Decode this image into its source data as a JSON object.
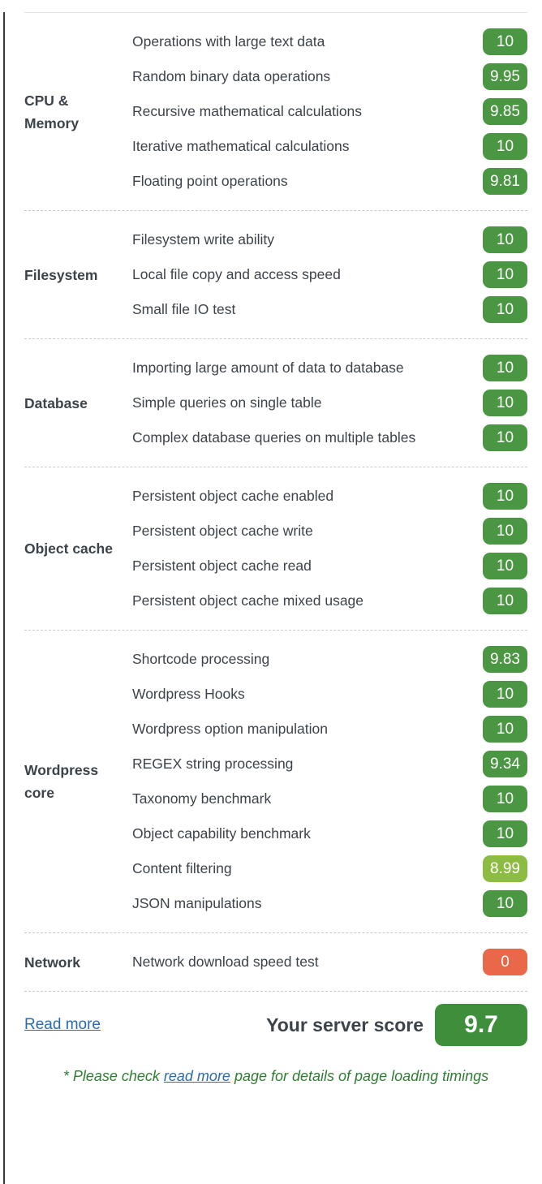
{
  "colors": {
    "green": "#4A9642",
    "light": "#8CBC42",
    "red": "#E96849",
    "score": "#3E8E3C",
    "link_blue": "#2b6cb0",
    "note_green": "#2e7d32",
    "text": "#3c434a"
  },
  "sections": [
    {
      "category": "CPU &\nMemory",
      "rows": [
        {
          "label": "Operations with large text data",
          "score": "10",
          "level": "green"
        },
        {
          "label": "Random binary data operations",
          "score": "9.95",
          "level": "green"
        },
        {
          "label": "Recursive mathematical calculations",
          "score": "9.85",
          "level": "green"
        },
        {
          "label": "Iterative mathematical calculations",
          "score": "10",
          "level": "green"
        },
        {
          "label": "Floating point operations",
          "score": "9.81",
          "level": "green"
        }
      ]
    },
    {
      "category": "Filesystem",
      "rows": [
        {
          "label": "Filesystem write ability",
          "score": "10",
          "level": "green"
        },
        {
          "label": "Local file copy and access speed",
          "score": "10",
          "level": "green"
        },
        {
          "label": "Small file IO test",
          "score": "10",
          "level": "green"
        }
      ]
    },
    {
      "category": "Database",
      "rows": [
        {
          "label": "Importing large amount of data to database",
          "score": "10",
          "level": "green"
        },
        {
          "label": "Simple queries on single table",
          "score": "10",
          "level": "green"
        },
        {
          "label": "Complex database queries on multiple tables",
          "score": "10",
          "level": "green"
        }
      ]
    },
    {
      "category": "Object cache",
      "rows": [
        {
          "label": "Persistent object cache enabled",
          "score": "10",
          "level": "green"
        },
        {
          "label": "Persistent object cache write",
          "score": "10",
          "level": "green"
        },
        {
          "label": "Persistent object cache read",
          "score": "10",
          "level": "green"
        },
        {
          "label": "Persistent object cache mixed usage",
          "score": "10",
          "level": "green"
        }
      ]
    },
    {
      "category": "Wordpress\ncore",
      "rows": [
        {
          "label": "Shortcode processing",
          "score": "9.83",
          "level": "green"
        },
        {
          "label": "Wordpress Hooks",
          "score": "10",
          "level": "green"
        },
        {
          "label": "Wordpress option manipulation",
          "score": "10",
          "level": "green"
        },
        {
          "label": "REGEX string processing",
          "score": "9.34",
          "level": "green"
        },
        {
          "label": "Taxonomy benchmark",
          "score": "10",
          "level": "green"
        },
        {
          "label": "Object capability benchmark",
          "score": "10",
          "level": "green"
        },
        {
          "label": "Content filtering",
          "score": "8.99",
          "level": "light"
        },
        {
          "label": "JSON manipulations",
          "score": "10",
          "level": "green"
        }
      ]
    },
    {
      "category": "Network",
      "rows": [
        {
          "label": "Network download speed test",
          "score": "0",
          "level": "red"
        }
      ]
    }
  ],
  "footer": {
    "read_more_label": "Read more",
    "score_label": "Your server score",
    "score_value": "9.7",
    "note_prefix": "* Please check ",
    "note_link": "read more",
    "note_suffix": " page for details of page loading timings"
  }
}
